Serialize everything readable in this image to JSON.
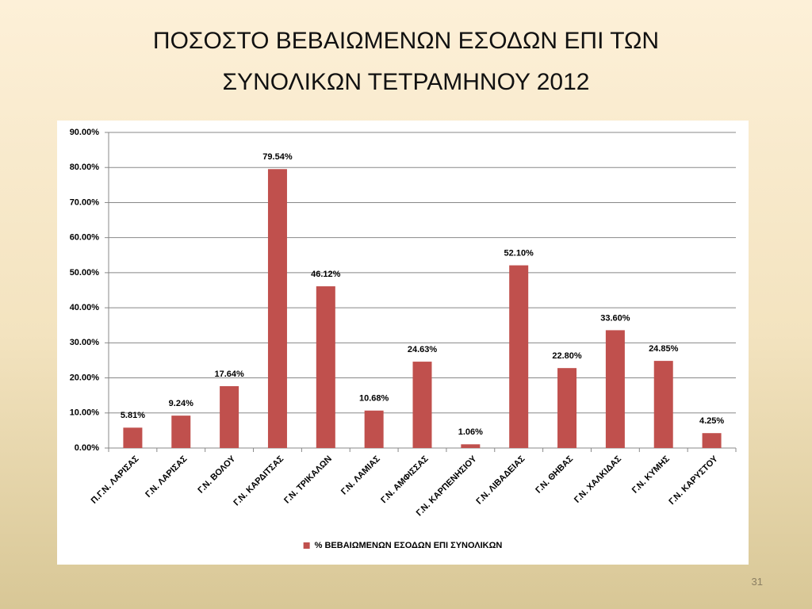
{
  "chart_data": {
    "type": "bar",
    "title": "ΠΟΣΟΣΤΟ ΒΕΒΑΙΩΜΕΝΩΝ ΕΣΟΔΩΝ ΕΠΙ ΤΩΝ ΣΥΝΟΛΙΚΩΝ ΤΕΤΡΑΜΗΝΟΥ 2012",
    "categories": [
      "Π.Γ.Ν. ΛΑΡΙΣΑΣ",
      "Γ.Ν. ΛΑΡΙΣΑΣ",
      "Γ.Ν. ΒΟΛΟΥ",
      "Γ.Ν. ΚΑΡΔΙΤΣΑΣ",
      "Γ.Ν. ΤΡΙΚΑΛΩΝ",
      "Γ.Ν. ΛΑΜΙΑΣ",
      "Γ.Ν. ΑΜΦΙΣΣΑΣ",
      "Γ.Ν. ΚΑΡΠΕΝΗΣΙΟΥ",
      "Γ.Ν. ΛΙΒΑΔΕΙΑΣ",
      "Γ.Ν. ΘΗΒΑΣ",
      "Γ.Ν. ΧΑΛΚΙΔΑΣ",
      "Γ.Ν. ΚΥΜΗΣ",
      "Γ.Ν. ΚΑΡΥΣΤΟΥ"
    ],
    "series": [
      {
        "name": "% ΒΕΒΑΙΩΜΕΝΩΝ ΕΣΟΔΩΝ ΕΠΙ ΣΥΝΟΛΙΚΩΝ",
        "color": "#c0504d",
        "values": [
          5.81,
          9.24,
          17.64,
          79.54,
          46.12,
          10.68,
          24.63,
          1.06,
          52.1,
          22.8,
          33.6,
          24.85,
          4.25
        ],
        "value_labels": [
          "5.81%",
          "9.24%",
          "17.64%",
          "79.54%",
          "46.12%",
          "10.68%",
          "24.63%",
          "1.06%",
          "52.10%",
          "22.80%",
          "33.60%",
          "24.85%",
          "4.25%"
        ]
      }
    ],
    "ylim": [
      0,
      90
    ],
    "yticks": [
      {
        "value": 0,
        "label": "0.00%"
      },
      {
        "value": 10,
        "label": "10.00%"
      },
      {
        "value": 20,
        "label": "20.00%"
      },
      {
        "value": 30,
        "label": "30.00%"
      },
      {
        "value": 40,
        "label": "40.00%"
      },
      {
        "value": 50,
        "label": "50.00%"
      },
      {
        "value": 60,
        "label": "60.00%"
      },
      {
        "value": 70,
        "label": "70.00%"
      },
      {
        "value": 80,
        "label": "80.00%"
      },
      {
        "value": 90,
        "label": "90.00%"
      }
    ],
    "grid": true,
    "legend": "bottom"
  },
  "slide_number": "31"
}
